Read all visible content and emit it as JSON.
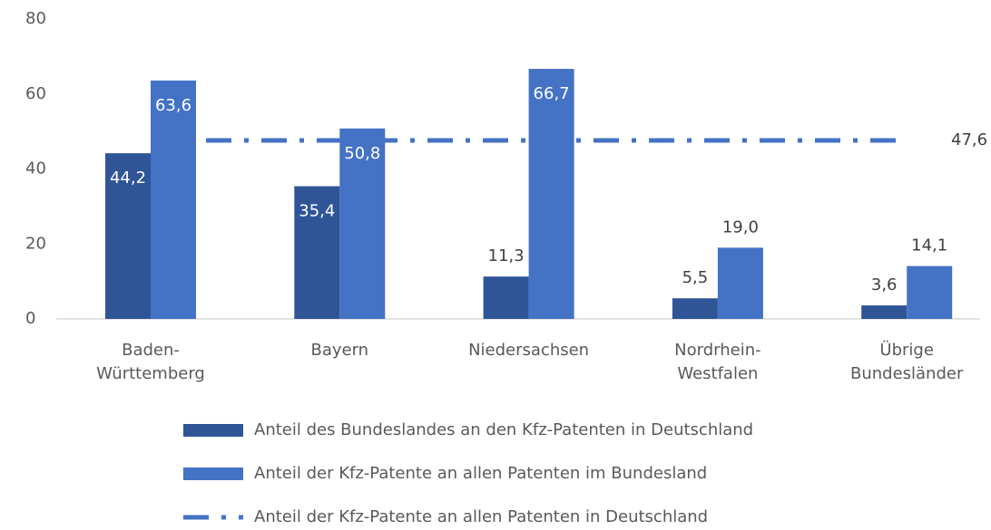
{
  "chart_data": {
    "type": "bar",
    "categories": [
      "Baden-\nWürttemberg",
      "Bayern",
      "Niedersachsen",
      "Nordrhein-\nWestfalen",
      "Übrige\nBundesländer"
    ],
    "series": [
      {
        "name": "Anteil des Bundeslandes an den Kfz-Patenten in Deutschland",
        "color": "#2f5597",
        "values": [
          44.2,
          35.4,
          11.3,
          5.5,
          3.6
        ],
        "value_labels": [
          "44,2",
          "35,4",
          "11,3",
          "5,5",
          "3,6"
        ]
      },
      {
        "name": "Anteil der Kfz-Patente an allen Patenten im Bundesland",
        "color": "#4472c4",
        "values": [
          63.6,
          50.8,
          66.7,
          19.0,
          14.1
        ],
        "value_labels": [
          "63,6",
          "50,8",
          "66,7",
          "19,0",
          "14,1"
        ]
      }
    ],
    "reference_line": {
      "name": "Anteil der Kfz-Patente an allen Patenten in Deutschland",
      "color": "#4472c4",
      "value": 47.6,
      "value_label": "47,6"
    },
    "ylim": [
      0,
      80
    ],
    "yticks": [
      0,
      20,
      40,
      60,
      80
    ],
    "grid": false,
    "legend": "bottom"
  }
}
